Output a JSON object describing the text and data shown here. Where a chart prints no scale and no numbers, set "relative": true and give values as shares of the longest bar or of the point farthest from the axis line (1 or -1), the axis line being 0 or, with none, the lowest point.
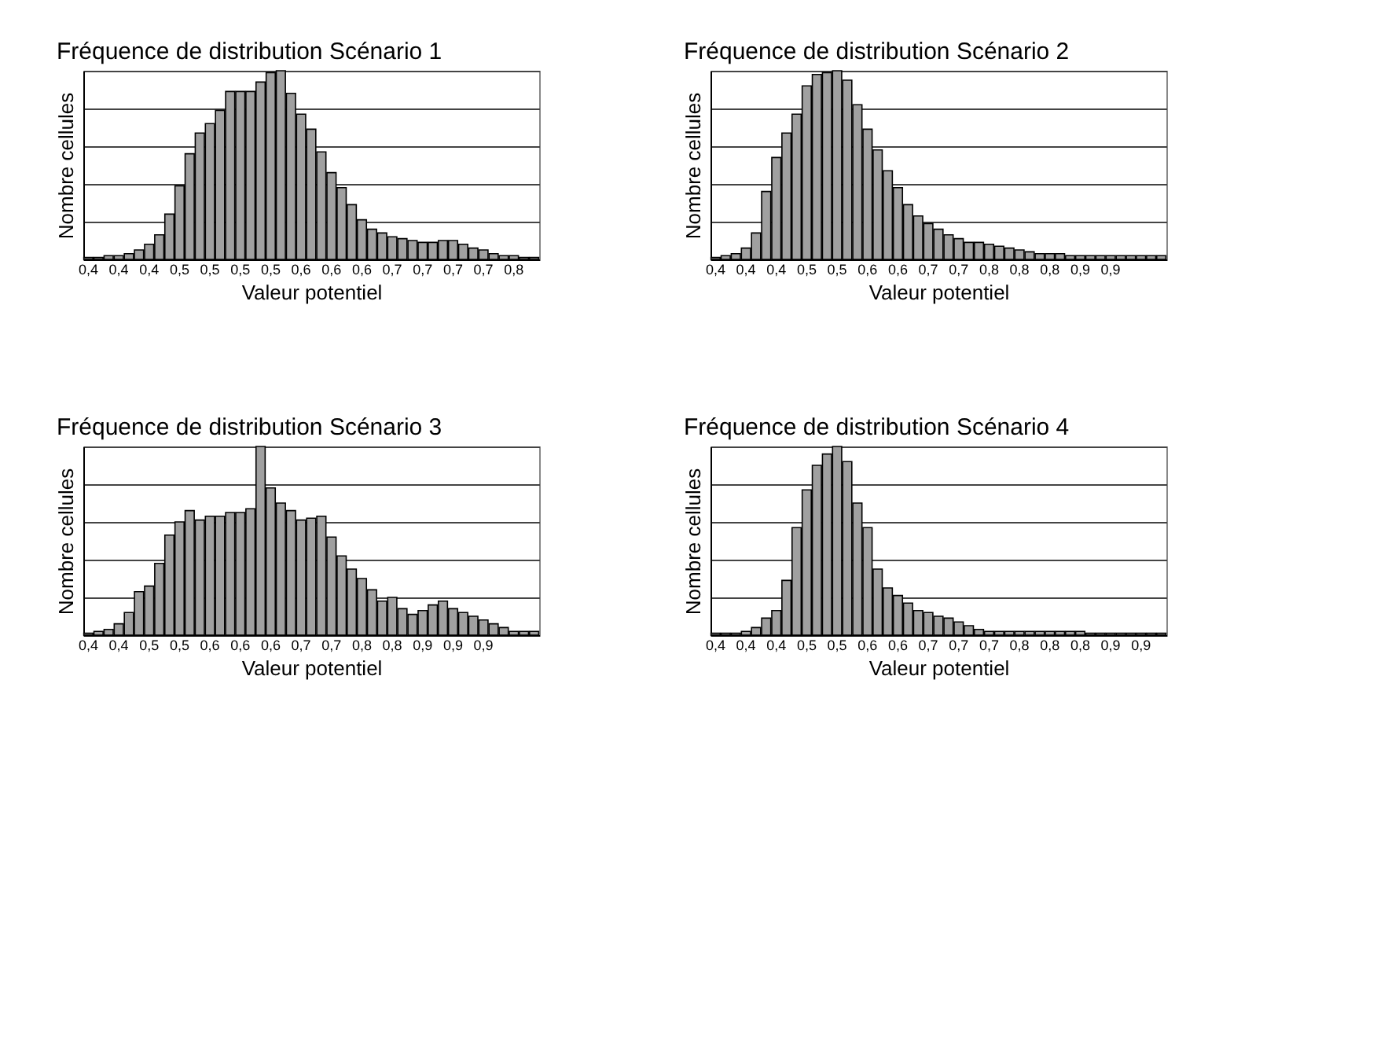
{
  "chart_data": [
    {
      "type": "bar",
      "title": "Fréquence de distribution Scénario 1",
      "xlabel": "Valeur potentiel",
      "ylabel": "Nombre cellules",
      "relative": true,
      "grid": "y",
      "color": "#a0a0a0",
      "categories": [
        "0,4",
        null,
        null,
        "0,4",
        null,
        null,
        "0,4",
        null,
        null,
        "0,5",
        null,
        null,
        "0,5",
        null,
        null,
        "0,5",
        null,
        null,
        "0,5",
        null,
        null,
        "0,6",
        null,
        null,
        "0,6",
        null,
        null,
        "0,6",
        null,
        null,
        "0,7",
        null,
        null,
        "0,7",
        null,
        null,
        "0,7",
        null,
        null,
        "0,7",
        null,
        null,
        "0,8",
        null,
        null
      ],
      "values": [
        0.01,
        0.01,
        0.02,
        0.02,
        0.03,
        0.05,
        0.08,
        0.13,
        0.24,
        0.39,
        0.56,
        0.67,
        0.72,
        0.79,
        0.89,
        0.89,
        0.89,
        0.94,
        0.99,
        1.0,
        0.88,
        0.77,
        0.69,
        0.57,
        0.46,
        0.38,
        0.29,
        0.21,
        0.16,
        0.14,
        0.12,
        0.11,
        0.1,
        0.09,
        0.09,
        0.1,
        0.1,
        0.08,
        0.06,
        0.05,
        0.03,
        0.02,
        0.02,
        0.01,
        0.01
      ]
    },
    {
      "type": "bar",
      "title": "Fréquence de distribution Scénario 2",
      "xlabel": "Valeur potentiel",
      "ylabel": "Nombre cellules",
      "relative": true,
      "grid": "y",
      "color": "#a0a0a0",
      "categories": [
        "0,4",
        null,
        null,
        "0,4",
        null,
        null,
        "0,4",
        null,
        null,
        "0,5",
        null,
        null,
        "0,5",
        null,
        null,
        "0,6",
        null,
        null,
        "0,6",
        null,
        null,
        "0,7",
        null,
        null,
        "0,7",
        null,
        null,
        "0,8",
        null,
        null,
        "0,8",
        null,
        null,
        "0,8",
        null,
        null,
        "0,9",
        null,
        null,
        "0,9",
        null,
        null,
        null,
        null,
        null
      ],
      "values": [
        0.01,
        0.02,
        0.03,
        0.06,
        0.14,
        0.36,
        0.54,
        0.67,
        0.77,
        0.92,
        0.98,
        0.99,
        1.0,
        0.95,
        0.82,
        0.69,
        0.58,
        0.47,
        0.38,
        0.29,
        0.23,
        0.19,
        0.16,
        0.13,
        0.11,
        0.09,
        0.09,
        0.08,
        0.07,
        0.06,
        0.05,
        0.04,
        0.03,
        0.03,
        0.03,
        0.02,
        0.02,
        0.02,
        0.02,
        0.02,
        0.02,
        0.02,
        0.02,
        0.02,
        0.02
      ]
    },
    {
      "type": "bar",
      "title": "Fréquence de distribution Scénario 3",
      "xlabel": "Valeur potentiel",
      "ylabel": "Nombre cellules",
      "relative": true,
      "grid": "y",
      "color": "#a0a0a0",
      "categories": [
        "0,4",
        null,
        null,
        "0,4",
        null,
        null,
        "0,5",
        null,
        null,
        "0,5",
        null,
        null,
        "0,6",
        null,
        null,
        "0,6",
        null,
        null,
        "0,6",
        null,
        null,
        "0,7",
        null,
        null,
        "0,7",
        null,
        null,
        "0,8",
        null,
        null,
        "0,8",
        null,
        null,
        "0,9",
        null,
        null,
        "0,9",
        null,
        null,
        "0,9",
        null,
        null,
        null,
        null,
        null
      ],
      "values": [
        0.01,
        0.02,
        0.03,
        0.06,
        0.12,
        0.23,
        0.26,
        0.38,
        0.53,
        0.6,
        0.66,
        0.61,
        0.63,
        0.63,
        0.65,
        0.65,
        0.67,
        1.0,
        0.78,
        0.7,
        0.66,
        0.61,
        0.62,
        0.63,
        0.52,
        0.42,
        0.35,
        0.3,
        0.24,
        0.18,
        0.2,
        0.14,
        0.11,
        0.13,
        0.16,
        0.18,
        0.14,
        0.12,
        0.1,
        0.08,
        0.06,
        0.04,
        0.02,
        0.02,
        0.02
      ]
    },
    {
      "type": "bar",
      "title": "Fréquence de distribution Scénario 4",
      "xlabel": "Valeur potentiel",
      "ylabel": "Nombre cellules",
      "relative": true,
      "grid": "y",
      "color": "#a0a0a0",
      "categories": [
        "0,4",
        null,
        null,
        "0,4",
        null,
        null,
        "0,4",
        null,
        null,
        "0,5",
        null,
        null,
        "0,5",
        null,
        null,
        "0,6",
        null,
        null,
        "0,6",
        null,
        null,
        "0,7",
        null,
        null,
        "0,7",
        null,
        null,
        "0,7",
        null,
        null,
        "0,8",
        null,
        null,
        "0,8",
        null,
        null,
        "0,8",
        null,
        null,
        "0,9",
        null,
        null,
        "0,9",
        null,
        null
      ],
      "values": [
        0.01,
        0.01,
        0.01,
        0.02,
        0.04,
        0.09,
        0.13,
        0.29,
        0.57,
        0.77,
        0.9,
        0.96,
        1.0,
        0.92,
        0.7,
        0.57,
        0.35,
        0.25,
        0.21,
        0.17,
        0.13,
        0.12,
        0.1,
        0.09,
        0.07,
        0.05,
        0.03,
        0.02,
        0.02,
        0.02,
        0.02,
        0.02,
        0.02,
        0.02,
        0.02,
        0.02,
        0.02,
        0.01,
        0.01,
        0.01,
        0.01,
        0.01,
        0.01,
        0.01,
        0.01
      ]
    }
  ]
}
